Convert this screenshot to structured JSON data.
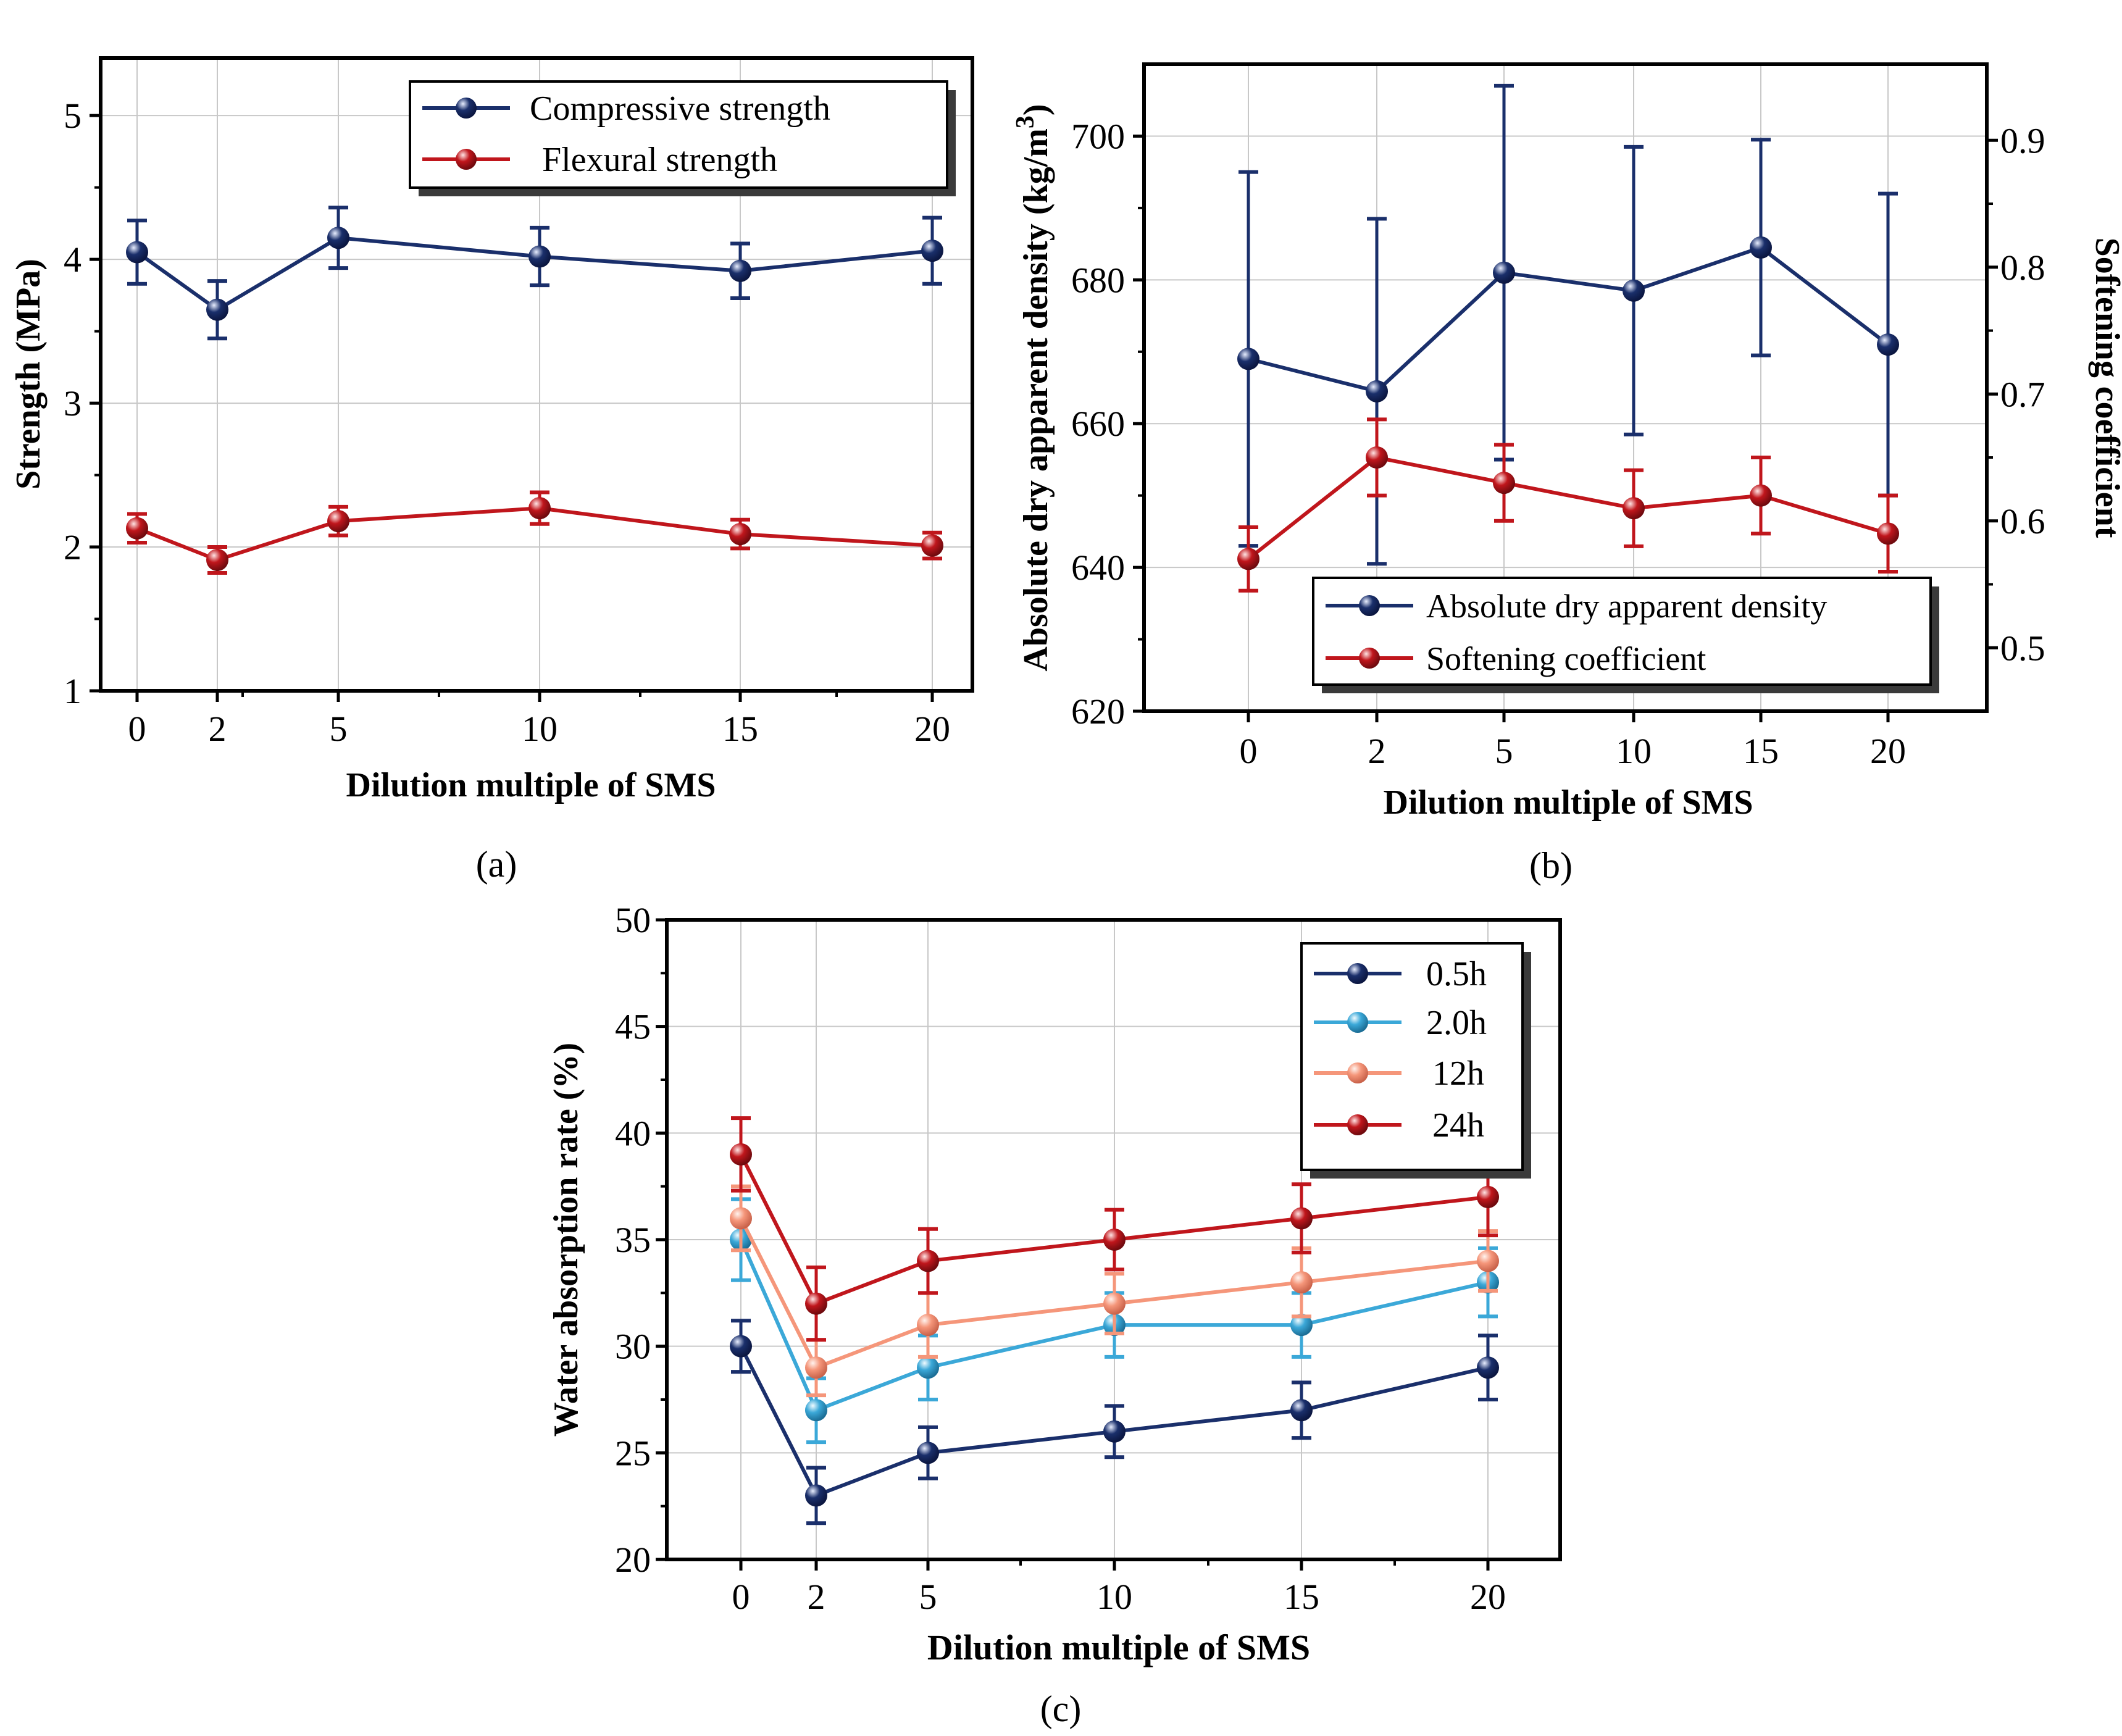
{
  "colors": {
    "navy": "#1a2f6b",
    "red": "#c0161c",
    "skyblue": "#3ba8d8",
    "salmon": "#f5967a",
    "grid": "#c8c8c8",
    "axis": "#000000"
  },
  "panels": [
    {
      "label": "(a)",
      "chart_data": {
        "type": "line",
        "categories": [
          "0",
          "2",
          "5",
          "10",
          "15",
          "20"
        ],
        "x": [
          0,
          2,
          5,
          10,
          15,
          20
        ],
        "xlabel": "Dilution multiple of SMS",
        "ylabel": "Strength (MPa)",
        "ylim": [
          1,
          5.4
        ],
        "yticks": [
          1,
          2,
          3,
          4,
          5
        ],
        "grid": true,
        "legend_position": "top-right",
        "series": [
          {
            "name": "Compressive strength",
            "color": "#1a2f6b",
            "axis": "left",
            "values": [
              4.05,
              3.65,
              4.15,
              4.02,
              3.92,
              4.06
            ],
            "err": [
              0.22,
              0.2,
              0.21,
              0.2,
              0.19,
              0.23
            ]
          },
          {
            "name": "Flexural strength",
            "color": "#c0161c",
            "axis": "left",
            "values": [
              2.13,
              1.91,
              2.18,
              2.27,
              2.09,
              2.01
            ],
            "err": [
              0.1,
              0.09,
              0.1,
              0.11,
              0.1,
              0.09
            ]
          }
        ]
      }
    },
    {
      "label": "(b)",
      "chart_data": {
        "type": "line",
        "categories": [
          "0",
          "2",
          "5",
          "10",
          "15",
          "20"
        ],
        "x": [
          0,
          2,
          5,
          10,
          15,
          20
        ],
        "xlabel": "Dilution multiple of SMS",
        "ylabel": "Absolute dry apparent density (kg/m3)",
        "ylim": [
          620,
          710
        ],
        "yticks": [
          620,
          640,
          660,
          680,
          700
        ],
        "y2label": "Softening coefficient",
        "y2lim": [
          0.45,
          0.96
        ],
        "y2ticks": [
          0.5,
          0.6,
          0.7,
          0.8,
          0.9
        ],
        "grid": true,
        "legend_position": "bottom-right",
        "series": [
          {
            "name": "Absolute dry apparent density",
            "color": "#1a2f6b",
            "axis": "left",
            "values": [
              669,
              664.5,
              681,
              678.5,
              684.5,
              671
            ],
            "err": [
              26,
              24,
              26,
              20,
              15,
              21
            ]
          },
          {
            "name": "Softening coefficient",
            "color": "#c0161c",
            "axis": "right",
            "values": [
              0.57,
              0.65,
              0.63,
              0.61,
              0.62,
              0.59
            ],
            "err": [
              0.025,
              0.03,
              0.03,
              0.03,
              0.03,
              0.03
            ]
          }
        ]
      }
    },
    {
      "label": "(c)",
      "chart_data": {
        "type": "line",
        "categories": [
          "0",
          "2",
          "5",
          "10",
          "15",
          "20"
        ],
        "x": [
          0,
          2,
          5,
          10,
          15,
          20
        ],
        "xlabel": "Dilution multiple of SMS",
        "ylabel": "Water absorption rate (%)",
        "ylim": [
          20,
          50
        ],
        "yticks": [
          20,
          25,
          30,
          35,
          40,
          45,
          50
        ],
        "grid": true,
        "legend_position": "top-right",
        "series": [
          {
            "name": "0.5h",
            "color": "#1a2f6b",
            "axis": "left",
            "values": [
              30,
              23,
              25,
              26,
              27,
              29
            ],
            "err": [
              1.2,
              1.3,
              1.2,
              1.2,
              1.3,
              1.5
            ]
          },
          {
            "name": "2.0h",
            "color": "#3ba8d8",
            "axis": "left",
            "values": [
              35,
              27,
              29,
              31,
              31,
              33
            ],
            "err": [
              1.9,
              1.5,
              1.5,
              1.5,
              1.5,
              1.6
            ]
          },
          {
            "name": "12h",
            "color": "#f5967a",
            "axis": "left",
            "values": [
              36,
              29,
              31,
              32,
              33,
              34
            ],
            "err": [
              1.5,
              1.3,
              1.5,
              1.4,
              1.6,
              1.4
            ]
          },
          {
            "name": "24h",
            "color": "#c0161c",
            "axis": "left",
            "values": [
              39,
              32,
              34,
              35,
              36,
              37
            ],
            "err": [
              1.7,
              1.7,
              1.5,
              1.4,
              1.6,
              1.8
            ]
          }
        ]
      }
    }
  ]
}
